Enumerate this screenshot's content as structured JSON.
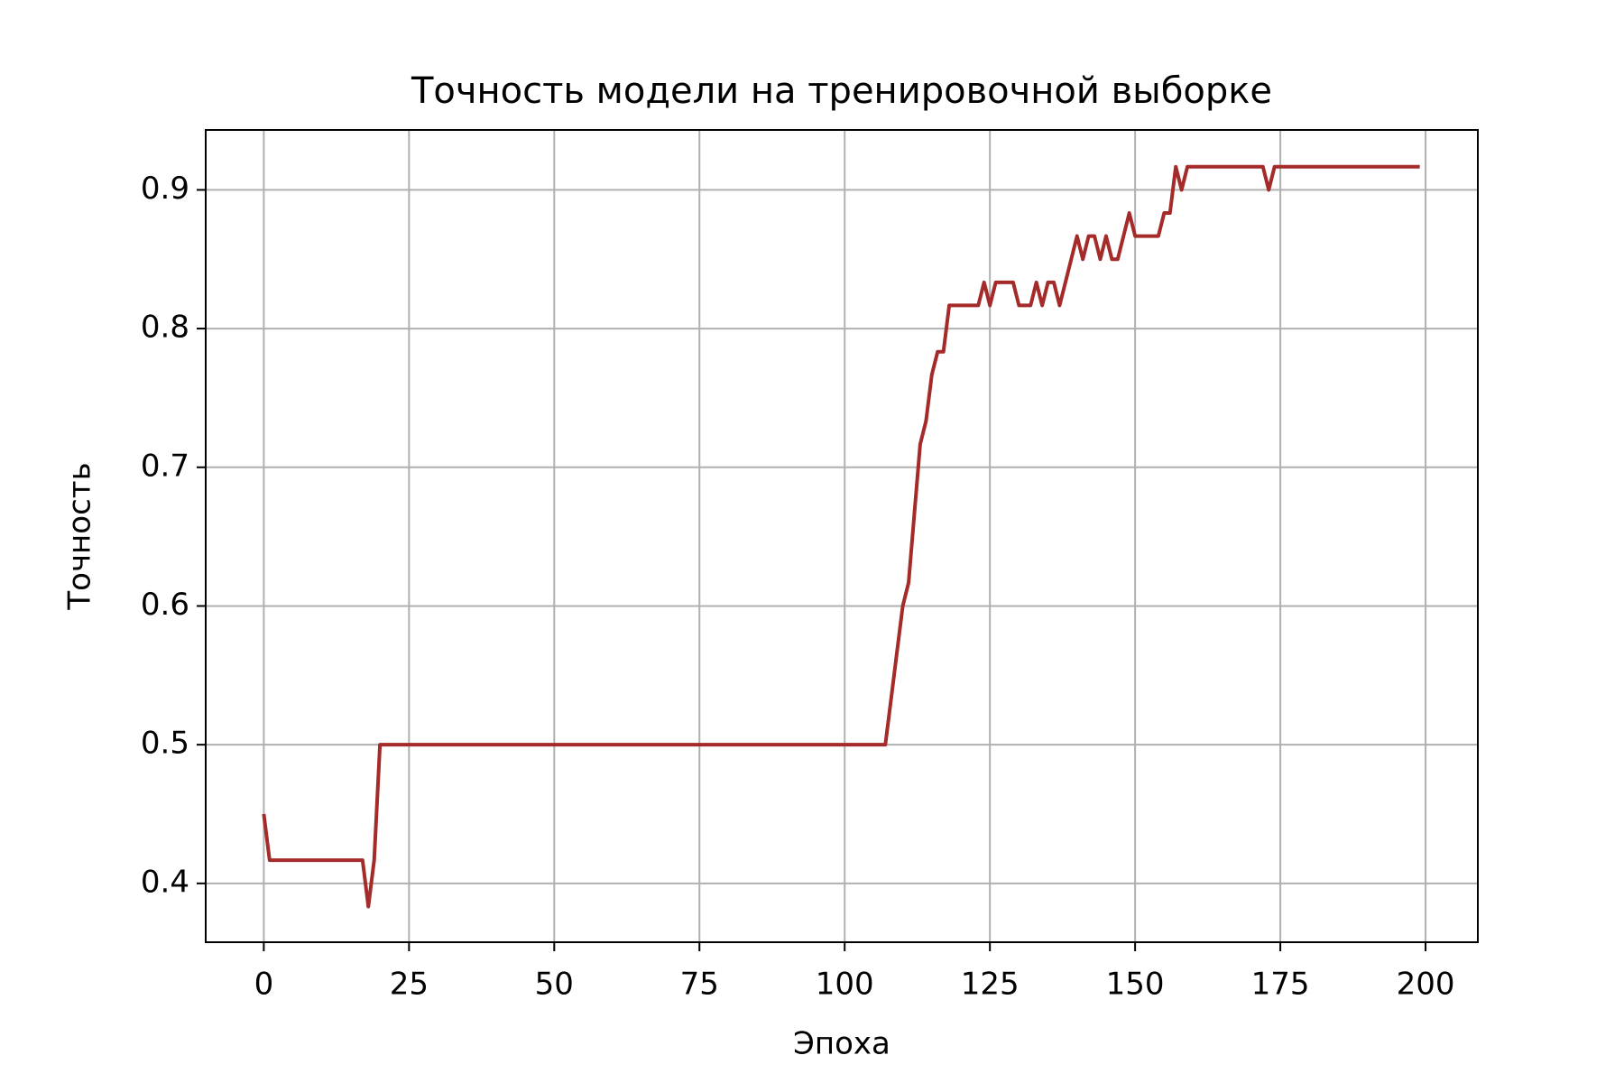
{
  "chart_data": {
    "type": "line",
    "title": "Точность модели на тренировочной выборке",
    "xlabel": "Эпоха",
    "ylabel": "Точность",
    "x": [
      0,
      1,
      2,
      3,
      4,
      5,
      6,
      7,
      8,
      9,
      10,
      11,
      12,
      13,
      14,
      15,
      16,
      17,
      18,
      19,
      20,
      21,
      22,
      23,
      24,
      25,
      26,
      27,
      28,
      29,
      30,
      31,
      32,
      33,
      34,
      35,
      36,
      37,
      38,
      39,
      40,
      41,
      42,
      43,
      44,
      45,
      46,
      47,
      48,
      49,
      50,
      51,
      52,
      53,
      54,
      55,
      56,
      57,
      58,
      59,
      60,
      61,
      62,
      63,
      64,
      65,
      66,
      67,
      68,
      69,
      70,
      71,
      72,
      73,
      74,
      75,
      76,
      77,
      78,
      79,
      80,
      81,
      82,
      83,
      84,
      85,
      86,
      87,
      88,
      89,
      90,
      91,
      92,
      93,
      94,
      95,
      96,
      97,
      98,
      99,
      100,
      101,
      102,
      103,
      104,
      105,
      106,
      107,
      108,
      109,
      110,
      111,
      112,
      113,
      114,
      115,
      116,
      117,
      118,
      119,
      120,
      121,
      122,
      123,
      124,
      125,
      126,
      127,
      128,
      129,
      130,
      131,
      132,
      133,
      134,
      135,
      136,
      137,
      138,
      139,
      140,
      141,
      142,
      143,
      144,
      145,
      146,
      147,
      148,
      149,
      150,
      151,
      152,
      153,
      154,
      155,
      156,
      157,
      158,
      159,
      160,
      161,
      162,
      163,
      164,
      165,
      166,
      167,
      168,
      169,
      170,
      171,
      172,
      173,
      174,
      175,
      176,
      177,
      178,
      179,
      180,
      181,
      182,
      183,
      184,
      185,
      186,
      187,
      188,
      189,
      190,
      191,
      192,
      193,
      194,
      195,
      196,
      197,
      198,
      199
    ],
    "series": [
      {
        "name": "Точность",
        "color": "#a52a2a",
        "values": [
          0.45,
          0.4167,
          0.4167,
          0.4167,
          0.4167,
          0.4167,
          0.4167,
          0.4167,
          0.4167,
          0.4167,
          0.4167,
          0.4167,
          0.4167,
          0.4167,
          0.4167,
          0.4167,
          0.4167,
          0.4167,
          0.3833,
          0.4167,
          0.5,
          0.5,
          0.5,
          0.5,
          0.5,
          0.5,
          0.5,
          0.5,
          0.5,
          0.5,
          0.5,
          0.5,
          0.5,
          0.5,
          0.5,
          0.5,
          0.5,
          0.5,
          0.5,
          0.5,
          0.5,
          0.5,
          0.5,
          0.5,
          0.5,
          0.5,
          0.5,
          0.5,
          0.5,
          0.5,
          0.5,
          0.5,
          0.5,
          0.5,
          0.5,
          0.5,
          0.5,
          0.5,
          0.5,
          0.5,
          0.5,
          0.5,
          0.5,
          0.5,
          0.5,
          0.5,
          0.5,
          0.5,
          0.5,
          0.5,
          0.5,
          0.5,
          0.5,
          0.5,
          0.5,
          0.5,
          0.5,
          0.5,
          0.5,
          0.5,
          0.5,
          0.5,
          0.5,
          0.5,
          0.5,
          0.5,
          0.5,
          0.5,
          0.5,
          0.5,
          0.5,
          0.5,
          0.5,
          0.5,
          0.5,
          0.5,
          0.5,
          0.5,
          0.5,
          0.5,
          0.5,
          0.5,
          0.5,
          0.5,
          0.5,
          0.5,
          0.5,
          0.5,
          0.5333,
          0.5667,
          0.6,
          0.6167,
          0.6667,
          0.7167,
          0.7333,
          0.7667,
          0.7833,
          0.7833,
          0.8167,
          0.8167,
          0.8167,
          0.8167,
          0.8167,
          0.8167,
          0.8333,
          0.8167,
          0.8333,
          0.8333,
          0.8333,
          0.8333,
          0.8167,
          0.8167,
          0.8167,
          0.8333,
          0.8167,
          0.8333,
          0.8333,
          0.8167,
          0.8333,
          0.85,
          0.8667,
          0.85,
          0.8667,
          0.8667,
          0.85,
          0.8667,
          0.85,
          0.85,
          0.8667,
          0.8833,
          0.8667,
          0.8667,
          0.8667,
          0.8667,
          0.8667,
          0.8833,
          0.8833,
          0.9167,
          0.9,
          0.9167,
          0.9167,
          0.9167,
          0.9167,
          0.9167,
          0.9167,
          0.9167,
          0.9167,
          0.9167,
          0.9167,
          0.9167,
          0.9167,
          0.9167,
          0.9167,
          0.9,
          0.9167,
          0.9167,
          0.9167,
          0.9167,
          0.9167,
          0.9167,
          0.9167,
          0.9167,
          0.9167,
          0.9167,
          0.9167,
          0.9167,
          0.9167,
          0.9167,
          0.9167,
          0.9167,
          0.9167,
          0.9167,
          0.9167,
          0.9167,
          0.9167,
          0.9167,
          0.9167,
          0.9167,
          0.9167,
          0.9167
        ]
      }
    ],
    "xlim": [
      -10,
      209
    ],
    "ylim": [
      0.3576,
      0.9432
    ],
    "xticks": [
      0,
      25,
      50,
      75,
      100,
      125,
      150,
      175,
      200
    ],
    "yticks": [
      0.4,
      0.5,
      0.6,
      0.7,
      0.8,
      0.9
    ],
    "grid": true
  }
}
